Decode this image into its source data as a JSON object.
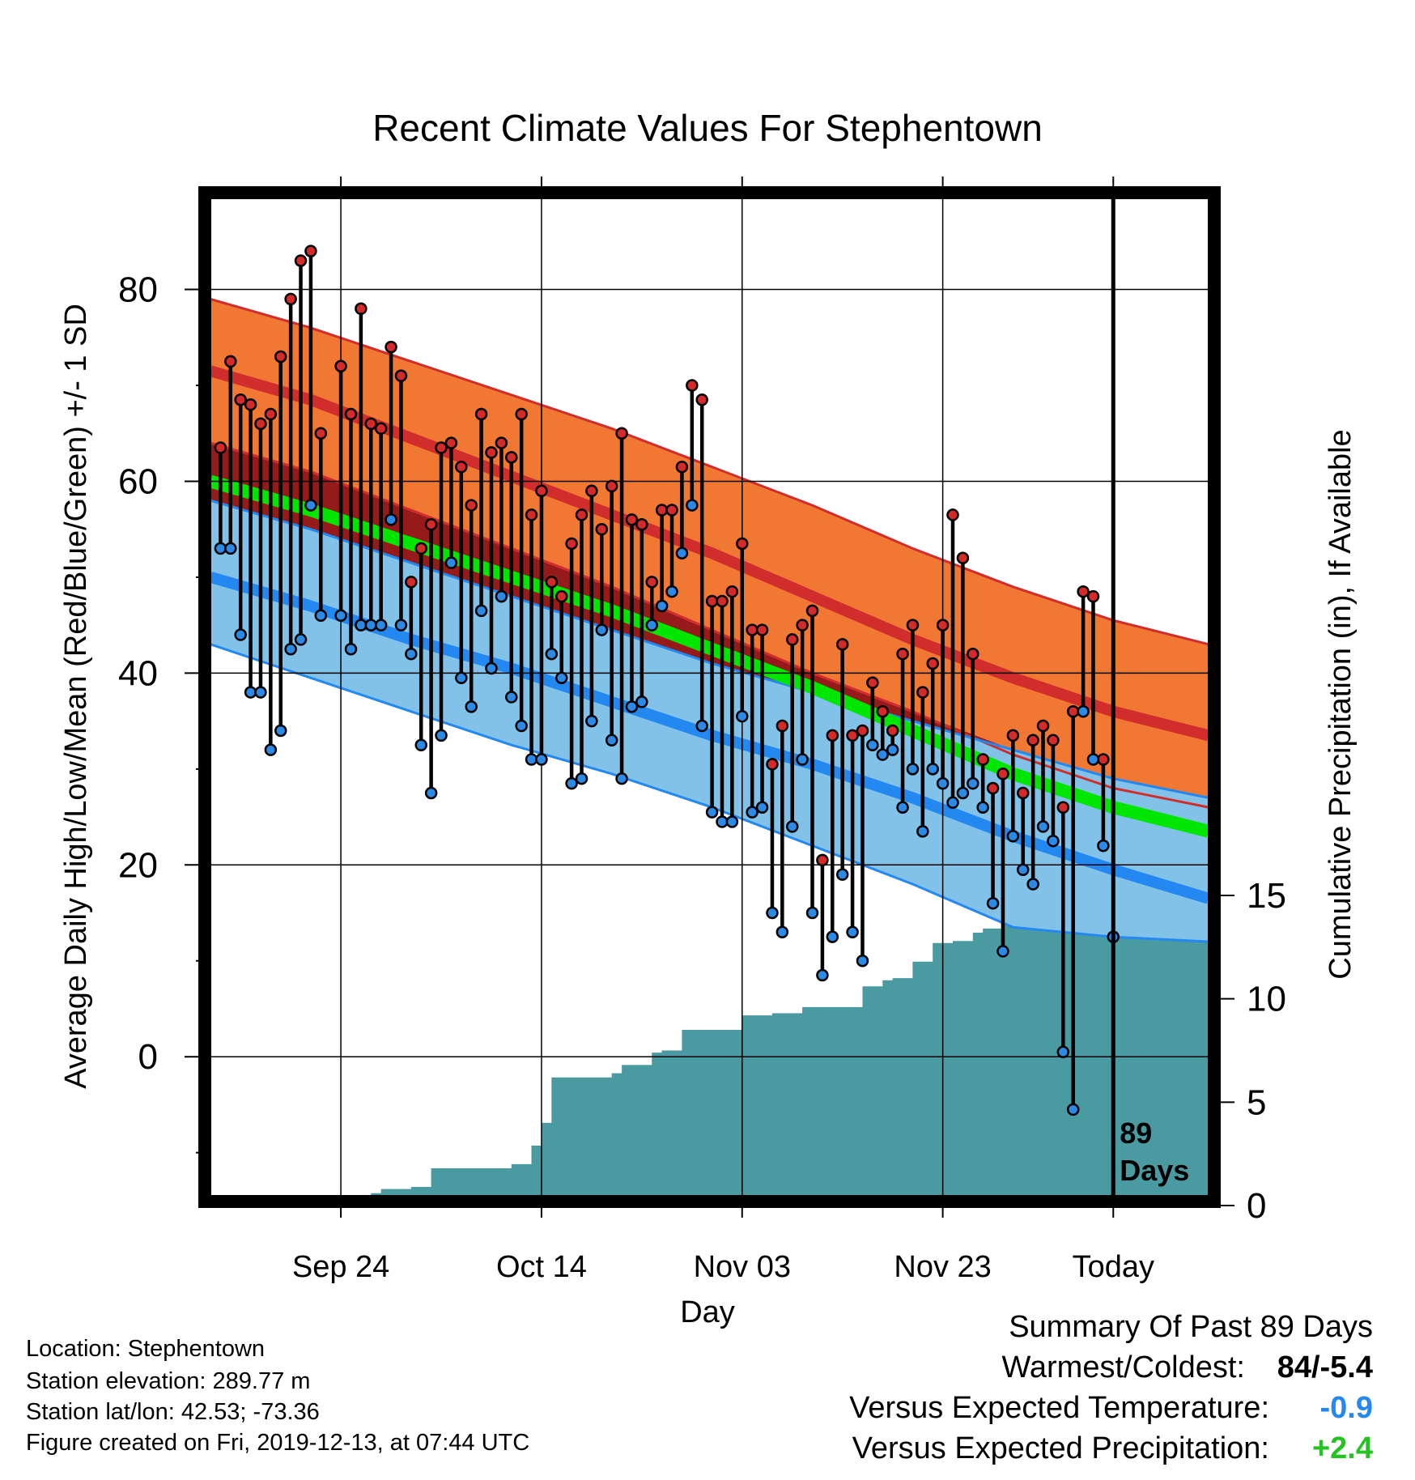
{
  "chart_data": {
    "type": "line",
    "title": "Recent Climate Values For Stephentown",
    "xlabel": "Day",
    "ylabel": "Average Daily High/Low/Mean (Red/Blue/Green) +/- 1 SD",
    "y2label": "Cumulative Precipitation (in), If Available",
    "x_tick_labels": [
      "Sep 24",
      "Oct 14",
      "Nov 03",
      "Nov 23",
      "Today"
    ],
    "y_ticks": [
      0,
      20,
      40,
      60,
      80
    ],
    "y_tick_labels": [
      "0",
      "20",
      "40",
      "60",
      "80"
    ],
    "y2_ticks": [
      0,
      5,
      10,
      15
    ],
    "y2_tick_labels": [
      "0",
      "5",
      "10",
      "15"
    ],
    "xlim": [
      -90,
      9.5
    ],
    "ylim": [
      -14.5,
      89.5
    ],
    "y2lim": [
      0,
      20
    ],
    "grid": true,
    "today_marker": {
      "day": 0,
      "label_line1": "89",
      "label_line2": "Days"
    },
    "normals": {
      "days": [
        -90,
        -80,
        -70,
        -60,
        -50,
        -40,
        -30,
        -20,
        -10,
        0,
        9.5
      ],
      "high_plus_sd": [
        79,
        76,
        72.5,
        69,
        65.5,
        61.5,
        57.5,
        53,
        49,
        45.5,
        43
      ],
      "high_mean": [
        71.5,
        68.5,
        64.5,
        60.5,
        56.5,
        52.5,
        48,
        43.5,
        39.5,
        36,
        33.5
      ],
      "high_minus_sd": [
        64,
        61,
        57,
        53,
        49,
        44.5,
        40,
        36,
        31.5,
        28,
        26
      ],
      "mean": [
        60,
        57,
        53.5,
        50,
        46.5,
        42.5,
        38.5,
        34,
        29.5,
        26,
        23.5
      ],
      "low_plus_sd": [
        58,
        55,
        51.5,
        48,
        44.5,
        41,
        38,
        35,
        32,
        29,
        27
      ],
      "low_mean": [
        50,
        47,
        43.5,
        40.5,
        37,
        33.5,
        30.5,
        27,
        23,
        19.5,
        16.5
      ],
      "low_minus_sd": [
        43,
        39.5,
        36,
        32.5,
        29.5,
        26,
        22,
        18,
        13.5,
        12.5,
        12
      ]
    },
    "series": [
      {
        "name": "High",
        "x": [
          -89,
          -88,
          -87,
          -86,
          -85,
          -84,
          -83,
          -82,
          -81,
          -80,
          -79,
          -78,
          -77,
          -76,
          -75,
          -74,
          -73,
          -72,
          -71,
          -70,
          -69,
          -68,
          -67,
          -66,
          -65,
          -64,
          -63,
          -62,
          -61,
          -60,
          -59,
          -58,
          -57,
          -56,
          -55,
          -54,
          -53,
          -52,
          -51,
          -50,
          -49,
          -48,
          -47,
          -46,
          -45,
          -44,
          -43,
          -42,
          -41,
          -40,
          -39,
          -38,
          -37,
          -36,
          -35,
          -34,
          -33,
          -32,
          -31,
          -30,
          -29,
          -28,
          -27,
          -26,
          -25,
          -24,
          -23,
          -22,
          -21,
          -20,
          -19,
          -18,
          -17,
          -16,
          -15,
          -14,
          -13,
          -12,
          -11,
          -10,
          -9,
          -8,
          -7,
          -6,
          -5,
          -4,
          -3,
          -2,
          -1
        ],
        "y": [
          63.5,
          72.5,
          68.5,
          68,
          66,
          67,
          73,
          79,
          83,
          84,
          65,
          null,
          72,
          67,
          78,
          66,
          65.5,
          74,
          71,
          49.5,
          53,
          55.5,
          63.5,
          64,
          61.5,
          57.5,
          67,
          63,
          64,
          62.5,
          67,
          56.5,
          59,
          49.5,
          48,
          53.5,
          56.5,
          59,
          55,
          59.5,
          65,
          56,
          55.5,
          49.5,
          57,
          57,
          61.5,
          70,
          68.5,
          47.5,
          47.5,
          48.5,
          53.5,
          44.5,
          44.5,
          30.5,
          34.5,
          43.5,
          45,
          46.5,
          20.5,
          33.5,
          43,
          33.5,
          34,
          39,
          36,
          34,
          42,
          45,
          38,
          41,
          45,
          56.5,
          52,
          42,
          31,
          28,
          29.5,
          33.5,
          27.5,
          33,
          34.5,
          33,
          26,
          36,
          48.5,
          48,
          31
        ]
      },
      {
        "name": "Low",
        "x": [
          -89,
          -88,
          -87,
          -86,
          -85,
          -84,
          -83,
          -82,
          -81,
          -80,
          -79,
          -78,
          -77,
          -76,
          -75,
          -74,
          -73,
          -72,
          -71,
          -70,
          -69,
          -68,
          -67,
          -66,
          -65,
          -64,
          -63,
          -62,
          -61,
          -60,
          -59,
          -58,
          -57,
          -56,
          -55,
          -54,
          -53,
          -52,
          -51,
          -50,
          -49,
          -48,
          -47,
          -46,
          -45,
          -44,
          -43,
          -42,
          -41,
          -40,
          -39,
          -38,
          -37,
          -36,
          -35,
          -34,
          -33,
          -32,
          -31,
          -30,
          -29,
          -28,
          -27,
          -26,
          -25,
          -24,
          -23,
          -22,
          -21,
          -20,
          -19,
          -18,
          -17,
          -16,
          -15,
          -14,
          -13,
          -12,
          -11,
          -10,
          -9,
          -8,
          -7,
          -6,
          -5,
          -4,
          -3,
          -2,
          -1,
          0
        ],
        "y": [
          53,
          53,
          44,
          38,
          38,
          32,
          34,
          42.5,
          43.5,
          57.5,
          46,
          null,
          46,
          42.5,
          45,
          45,
          45,
          56,
          45,
          42,
          32.5,
          27.5,
          33.5,
          51.5,
          39.5,
          36.5,
          46.5,
          40.5,
          48,
          37.5,
          34.5,
          31,
          31,
          42,
          39.5,
          28.5,
          29,
          35,
          44.5,
          33,
          29,
          36.5,
          37,
          45,
          47,
          48.5,
          52.5,
          57.5,
          34.5,
          25.5,
          24.5,
          24.5,
          35.5,
          25.5,
          26,
          15,
          13,
          24,
          31,
          15,
          8.5,
          12.5,
          19,
          13,
          10,
          32.5,
          31.5,
          32,
          26,
          30,
          23.5,
          30,
          28.5,
          26.5,
          27.5,
          28.5,
          26,
          16,
          11,
          23,
          19.5,
          18,
          24,
          22.5,
          0.5,
          -5.5,
          36,
          31,
          22,
          12.5
        ]
      },
      {
        "name": "Precipitation",
        "x": [
          -90,
          -80,
          -79,
          -77,
          -75,
          -74,
          -73,
          -70,
          -68,
          -67,
          -66,
          -65,
          -64,
          -60,
          -58,
          -57,
          -56,
          -55,
          -50,
          -49,
          -48,
          -46,
          -45,
          -43,
          -42,
          -41,
          -38,
          -37,
          -35,
          -34,
          -32,
          -31,
          -30,
          -29,
          -26,
          -25,
          -24,
          -23,
          -22,
          -20,
          -19,
          -18,
          -17,
          -16,
          -14,
          -13,
          -12,
          -11,
          -9,
          -8,
          -6,
          -4,
          -3,
          -2,
          0,
          9.5
        ],
        "y": [
          0,
          0,
          0.3,
          0.35,
          0.35,
          0.6,
          0.8,
          0.9,
          1.8,
          1.8,
          1.8,
          1.8,
          1.8,
          2.0,
          2.9,
          4.0,
          6.2,
          6.2,
          6.4,
          6.8,
          6.8,
          7.4,
          7.5,
          8.5,
          8.5,
          8.5,
          8.5,
          9.2,
          9.2,
          9.3,
          9.3,
          9.6,
          9.6,
          9.6,
          9.6,
          10.6,
          10.6,
          10.9,
          11,
          11.8,
          11.8,
          12.7,
          12.7,
          12.8,
          13.2,
          13.4,
          13.4,
          13.8,
          13.9,
          13.9,
          14.1,
          14.4,
          14.8,
          15,
          15,
          15
        ]
      }
    ]
  },
  "footer": {
    "location": "Location: Stephentown",
    "elevation": "Station elevation: 289.77 m",
    "latlon": "Station lat/lon: 42.53; -73.36",
    "created": "Figure created on Fri, 2019-12-13, at 07:44 UTC"
  },
  "summary": {
    "title": "Summary Of Past 89 Days",
    "warmest_coldest_label": "Warmest/Coldest:",
    "warmest_coldest_value": "84/-5.4",
    "temp_label": "Versus Expected Temperature:",
    "temp_value": "-0.9",
    "precip_label": "Versus Expected Precipitation:",
    "precip_value": "+2.4"
  },
  "colors": {
    "high_band": "#f07832",
    "high_line": "#d22d2d",
    "above_low_band": "#961a1a",
    "mean_line": "#00e600",
    "low_band": "#82c1e8",
    "low_line": "#2388f0",
    "precip_area": "#4a9aa2",
    "high_dot": "#d42a2a",
    "low_dot": "#2a8ae6",
    "temp_value": "#2388f0",
    "precip_value": "#22c422"
  }
}
